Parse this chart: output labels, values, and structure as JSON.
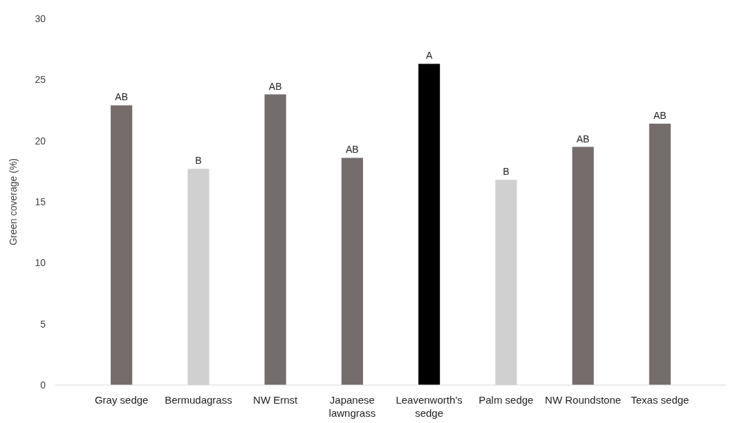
{
  "chart_data": {
    "type": "bar",
    "ylabel": "Green coverage (%)",
    "categories": [
      "Gray sedge",
      "Bermudagrass",
      "NW Ernst",
      "Japanese lawngrass",
      "Leavenworth’s sedge",
      "Palm sedge",
      "NW Roundstone",
      "Texas sedge"
    ],
    "values": [
      22.9,
      17.7,
      23.8,
      18.6,
      26.3,
      16.8,
      19.5,
      21.4
    ],
    "colors": [
      "#756c6c",
      "#d0d0d0",
      "#756c6c",
      "#756c6c",
      "#000000",
      "#d0d0d0",
      "#756c6c",
      "#756c6c"
    ],
    "value_labels": [
      "AB",
      "B",
      "AB",
      "AB",
      "A",
      "B",
      "AB",
      "AB"
    ],
    "ylim": [
      0,
      30
    ],
    "yticks": [
      0,
      5,
      10,
      15,
      20,
      25,
      30
    ],
    "grid": false
  }
}
